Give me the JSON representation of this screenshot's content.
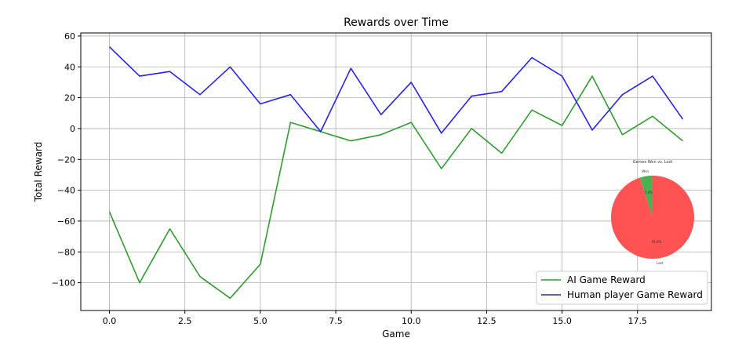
{
  "chart_data": [
    {
      "type": "line",
      "title": "Rewards over Time",
      "xlabel": "Game",
      "ylabel": "Total Reward",
      "xlim": [
        -0.95,
        19.95
      ],
      "ylim": [
        -118,
        62
      ],
      "xticks": [
        0.0,
        2.5,
        5.0,
        7.5,
        10.0,
        12.5,
        15.0,
        17.5
      ],
      "xtick_labels": [
        "0.0",
        "2.5",
        "5.0",
        "7.5",
        "10.0",
        "12.5",
        "15.0",
        "17.5"
      ],
      "yticks": [
        -100,
        -80,
        -60,
        -40,
        -20,
        0,
        20,
        40,
        60
      ],
      "ytick_labels": [
        "−100",
        "−80",
        "−60",
        "−40",
        "−20",
        "0",
        "20",
        "40",
        "60"
      ],
      "grid": true,
      "legend": "lower-right",
      "x": [
        0,
        1,
        2,
        3,
        4,
        5,
        6,
        7,
        8,
        9,
        10,
        11,
        12,
        13,
        14,
        15,
        16,
        17,
        18,
        19
      ],
      "series": [
        {
          "name": "AI Game Reward",
          "color": "#2ca02c",
          "values": [
            -54,
            -100,
            -65,
            -96,
            -110,
            -88,
            4,
            -2,
            -8,
            -4,
            4,
            -26,
            0,
            -16,
            12,
            2,
            34,
            -4,
            8,
            -8
          ]
        },
        {
          "name": "Human player Game Reward",
          "color": "#2222ff",
          "values": [
            53,
            34,
            37,
            22,
            40,
            16,
            22,
            -2,
            39,
            9,
            30,
            -3,
            21,
            24,
            46,
            34,
            -1,
            22,
            34,
            6
          ]
        }
      ]
    },
    {
      "type": "pie",
      "title": "Games Won vs. Lost",
      "categories": [
        "Won",
        "Lost"
      ],
      "values": [
        5.0,
        95.0
      ],
      "value_labels": [
        "5.0%",
        "95.0%"
      ],
      "colors": [
        "#4caf50",
        "#ff5252"
      ]
    }
  ]
}
